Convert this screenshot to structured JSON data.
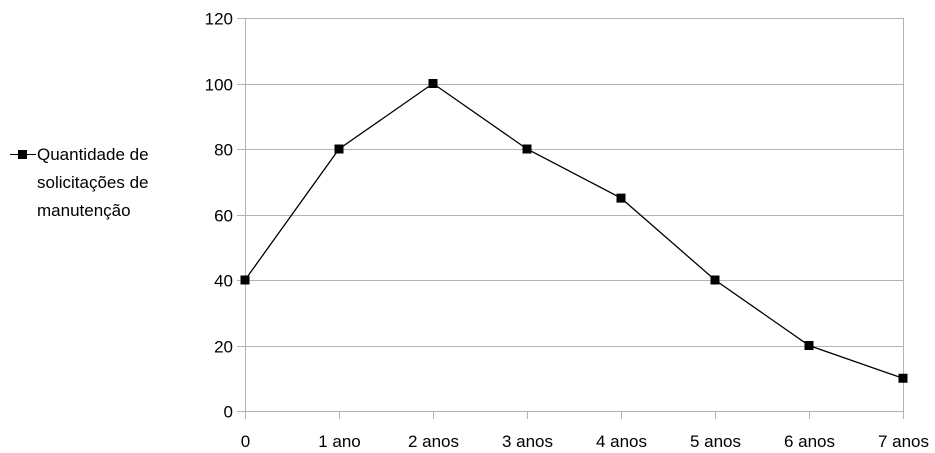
{
  "chart_data": {
    "type": "line",
    "title": "",
    "xlabel": "",
    "ylabel": "",
    "categories": [
      "0",
      "1 ano",
      "2 anos",
      "3 anos",
      "4 anos",
      "5 anos",
      "6 anos",
      "7 anos"
    ],
    "series": [
      {
        "name": "Quantidade de solicitações de manutenção",
        "values": [
          40,
          80,
          100,
          80,
          65,
          40,
          20,
          10
        ]
      }
    ],
    "ylim": [
      0,
      120
    ],
    "yticks": [
      0,
      20,
      40,
      60,
      80,
      100,
      120
    ],
    "grid": true,
    "legend_position": "left",
    "marker": "square",
    "line_color": "#000000",
    "grid_color": "#b3b3b3"
  }
}
